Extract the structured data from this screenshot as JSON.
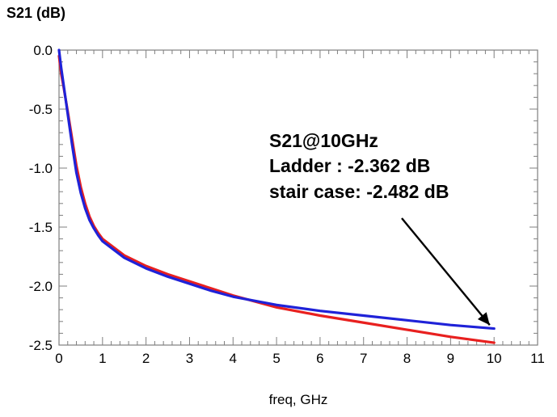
{
  "chart_data": {
    "type": "line",
    "title": "",
    "ylabel": "S21 (dB)",
    "xlabel": "freq, GHz",
    "xlim": [
      0,
      11
    ],
    "ylim": [
      -2.5,
      0.0
    ],
    "x_ticks": [
      0,
      1,
      2,
      3,
      4,
      5,
      6,
      7,
      8,
      9,
      10,
      11
    ],
    "y_ticks": [
      0.0,
      -0.5,
      -1.0,
      -1.5,
      -2.0,
      -2.5
    ],
    "x_tick_labels": [
      "0",
      "1",
      "2",
      "3",
      "4",
      "5",
      "6",
      "7",
      "8",
      "9",
      "10",
      "11"
    ],
    "y_tick_labels": [
      "0.0",
      "-0.5",
      "-1.0",
      "-1.5",
      "-2.0",
      "-2.5"
    ],
    "grid": false,
    "series": [
      {
        "color": "#e8201f",
        "x": [
          0,
          0.05,
          0.1,
          0.2,
          0.3,
          0.4,
          0.5,
          0.6,
          0.7,
          0.8,
          0.9,
          1.0,
          1.5,
          2.0,
          2.5,
          3.0,
          3.5,
          4.0,
          5.0,
          6.0,
          7.0,
          8.0,
          9.0,
          10.0
        ],
        "values": [
          -0.05,
          -0.2,
          -0.3,
          -0.52,
          -0.75,
          -0.98,
          -1.16,
          -1.3,
          -1.41,
          -1.49,
          -1.55,
          -1.6,
          -1.74,
          -1.83,
          -1.9,
          -1.96,
          -2.02,
          -2.08,
          -2.18,
          -2.25,
          -2.31,
          -2.37,
          -2.43,
          -2.48
        ]
      },
      {
        "color": "#1f22d8",
        "x": [
          0,
          0.05,
          0.1,
          0.2,
          0.3,
          0.4,
          0.5,
          0.6,
          0.7,
          0.8,
          0.9,
          1.0,
          1.5,
          2.0,
          2.5,
          3.0,
          3.5,
          4.0,
          5.0,
          6.0,
          7.0,
          8.0,
          9.0,
          10.0
        ],
        "values": [
          0.0,
          -0.15,
          -0.28,
          -0.54,
          -0.8,
          -1.04,
          -1.21,
          -1.34,
          -1.44,
          -1.51,
          -1.57,
          -1.62,
          -1.76,
          -1.85,
          -1.92,
          -1.98,
          -2.04,
          -2.09,
          -2.16,
          -2.21,
          -2.25,
          -2.29,
          -2.33,
          -2.36
        ]
      }
    ],
    "annotation": {
      "lines": [
        "S21@10GHz",
        "Ladder : -2.362 dB",
        "stair case: -2.482 dB"
      ],
      "arrow_to": [
        9.9,
        -2.33
      ]
    }
  }
}
